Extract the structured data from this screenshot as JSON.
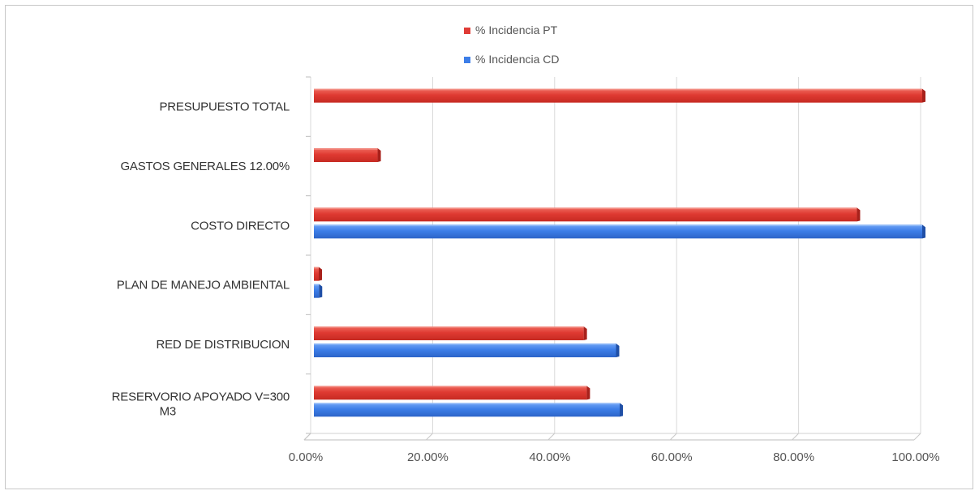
{
  "chart_data": {
    "type": "bar",
    "orientation": "horizontal",
    "categories": [
      "PRESUPUESTO TOTAL",
      "GASTOS GENERALES 12.00%",
      "COSTO DIRECTO",
      "PLAN DE MANEJO AMBIENTAL",
      "RED DE DISTRIBUCION",
      "RESERVORIO APOYADO V=300 M3"
    ],
    "category_label_lines": [
      [
        "PRESUPUESTO TOTAL"
      ],
      [
        "GASTOS GENERALES 12.00%"
      ],
      [
        "COSTO DIRECTO"
      ],
      [
        "PLAN DE MANEJO AMBIENTAL"
      ],
      [
        "RED DE DISTRIBUCION"
      ],
      [
        "RESERVORIO APOYADO V=300",
        "M3"
      ]
    ],
    "series": [
      {
        "name": "% Incidencia PT",
        "color": "#e03c36",
        "values": [
          100.0,
          10.71,
          89.29,
          1.0,
          44.5,
          45.0
        ]
      },
      {
        "name": "% Incidencia CD",
        "color": "#3d7ee8",
        "values": [
          null,
          null,
          100.0,
          1.1,
          49.8,
          50.4
        ]
      }
    ],
    "xlim": [
      0,
      100
    ],
    "x_ticks": [
      0,
      20,
      40,
      60,
      80,
      100
    ],
    "x_tick_labels": [
      "0.00%",
      "20.00%",
      "40.00%",
      "60.00%",
      "80.00%",
      "100.00%"
    ],
    "grid": true,
    "legend_position": "top-center",
    "title": "",
    "xlabel": "",
    "ylabel": ""
  }
}
